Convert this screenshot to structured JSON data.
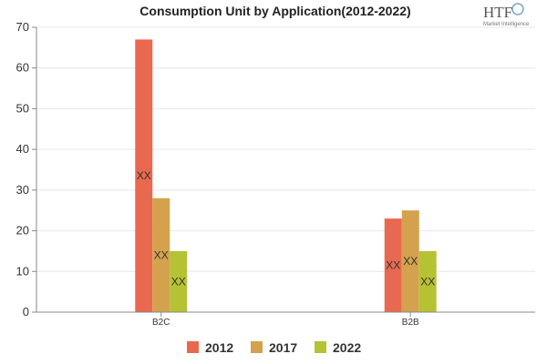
{
  "chart_data": {
    "type": "bar",
    "title": "Consumption Unit by  Application(2012-2022)",
    "xlabel": "",
    "ylabel": "",
    "ylim": [
      0,
      70
    ],
    "yticks": [
      0,
      10,
      20,
      30,
      40,
      50,
      60,
      70
    ],
    "categories": [
      "B2C",
      "B2B"
    ],
    "series": [
      {
        "name": "2012",
        "color": "#e8694f",
        "values": [
          67,
          23
        ],
        "labels": [
          "XX",
          "XX"
        ]
      },
      {
        "name": "2017",
        "color": "#d4a24c",
        "values": [
          28,
          25
        ],
        "labels": [
          "XX",
          "XX"
        ]
      },
      {
        "name": "2022",
        "color": "#b5c234",
        "values": [
          15,
          15
        ],
        "labels": [
          "XX",
          "XX"
        ]
      }
    ],
    "legend_position": "bottom-center"
  },
  "logo": {
    "main": "HTF",
    "sub": "Market Intelligence"
  }
}
